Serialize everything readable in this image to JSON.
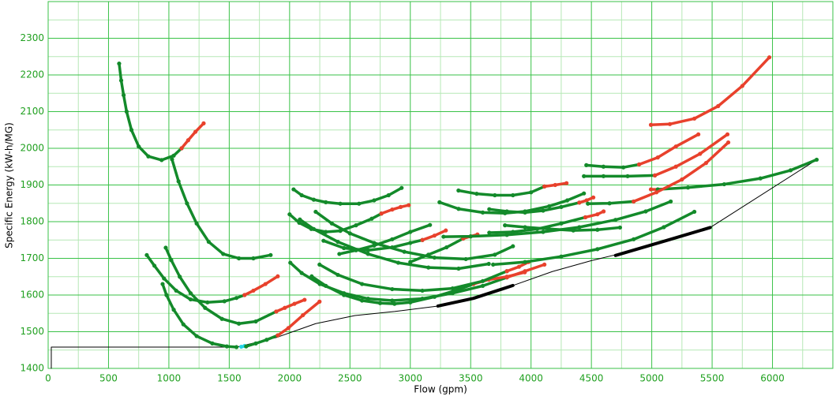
{
  "chart_data": {
    "type": "scatter",
    "x_label": "Flow (gpm)",
    "y_label": "Specific Energy (kW-h/MG)",
    "xlim": [
      0,
      6500
    ],
    "ylim": [
      1400,
      2400
    ],
    "xticks": [
      0,
      500,
      1000,
      1500,
      2000,
      2500,
      3000,
      3500,
      4000,
      4500,
      5000,
      5500,
      6000
    ],
    "yticks": [
      1400,
      1500,
      1600,
      1700,
      1800,
      1900,
      2000,
      2100,
      2200,
      2300
    ],
    "grid": true,
    "minor_grid": true,
    "series": [
      {
        "color": "#000000",
        "style": "line",
        "x": [
          26,
          26,
          1562,
          1889,
          2216,
          2542,
          2869,
          3229,
          3523,
          3850,
          4176,
          4503,
          4830,
          5157,
          5484,
          6366
        ],
        "values": [
          1400,
          1458,
          1458,
          1484,
          1522,
          1544,
          1555,
          1570,
          1591,
          1626,
          1664,
          1694,
          1720,
          1752,
          1784,
          1969
        ]
      },
      {
        "color": "#138a2a",
        "style": "dots",
        "x": [
          588,
          605,
          625,
          650,
          690,
          750,
          830,
          940,
          1040,
          1105
        ],
        "values": [
          2231,
          2185,
          2145,
          2100,
          2050,
          2005,
          1978,
          1968,
          1980,
          2000
        ]
      },
      {
        "color": "#e8412c",
        "style": "dots",
        "x": [
          1105,
          1160,
          1220,
          1288
        ],
        "values": [
          2000,
          2022,
          2045,
          2068
        ]
      },
      {
        "color": "#138a2a",
        "style": "dots",
        "x": [
          1026,
          1080,
          1150,
          1230,
          1330,
          1450,
          1580,
          1700,
          1843
        ],
        "values": [
          1970,
          1910,
          1850,
          1795,
          1745,
          1712,
          1700,
          1700,
          1709
        ]
      },
      {
        "color": "#138a2a",
        "style": "dots",
        "x": [
          817,
          880,
          960,
          1060,
          1180,
          1320,
          1460,
          1560,
          1627
        ],
        "values": [
          1709,
          1680,
          1645,
          1612,
          1588,
          1580,
          1583,
          1592,
          1600
        ]
      },
      {
        "color": "#e8412c",
        "style": "dots",
        "x": [
          1627,
          1700,
          1800,
          1902
        ],
        "values": [
          1600,
          1612,
          1630,
          1651
        ]
      },
      {
        "color": "#138a2a",
        "style": "dots",
        "x": [
          974,
          1020,
          1090,
          1180,
          1300,
          1440,
          1580,
          1720,
          1889
        ],
        "values": [
          1729,
          1695,
          1650,
          1605,
          1565,
          1535,
          1522,
          1528,
          1555
        ]
      },
      {
        "color": "#e8412c",
        "style": "dots",
        "x": [
          1889,
          1960,
          2040,
          2124
        ],
        "values": [
          1555,
          1565,
          1576,
          1587
        ]
      },
      {
        "color": "#138a2a",
        "style": "dots",
        "x": [
          948,
          980,
          1040,
          1120,
          1230,
          1360,
          1480,
          1560
        ],
        "values": [
          1630,
          1600,
          1560,
          1520,
          1488,
          1468,
          1460,
          1458
        ]
      },
      {
        "color": "#22d3e6",
        "style": "dots",
        "x": [
          1600,
          1627
        ],
        "values": [
          1459,
          1461
        ]
      },
      {
        "color": "#138a2a",
        "style": "dots",
        "x": [
          1640,
          1720,
          1810,
          1902
        ],
        "values": [
          1460,
          1468,
          1478,
          1490
        ]
      },
      {
        "color": "#e8412c",
        "style": "dots",
        "x": [
          1902,
          1990,
          2110,
          2248
        ],
        "values": [
          1490,
          1510,
          1545,
          1582
        ]
      },
      {
        "color": "#138a2a",
        "style": "dots",
        "x": [
          2033,
          2100,
          2200,
          2300,
          2420,
          2575,
          2700,
          2820,
          2928
        ],
        "values": [
          1888,
          1872,
          1860,
          1853,
          1849,
          1849,
          1858,
          1872,
          1892
        ]
      },
      {
        "color": "#138a2a",
        "style": "dots",
        "x": [
          2000,
          2080,
          2180,
          2300,
          2420,
          2550,
          2680,
          2760
        ],
        "values": [
          1820,
          1797,
          1780,
          1772,
          1775,
          1790,
          1808,
          1822
        ]
      },
      {
        "color": "#e8412c",
        "style": "dots",
        "x": [
          2760,
          2850,
          2920,
          2987
        ],
        "values": [
          1822,
          1833,
          1840,
          1845
        ]
      },
      {
        "color": "#138a2a",
        "style": "dots",
        "x": [
          2216,
          2350,
          2500,
          2700,
          2950,
          3200,
          3460,
          3700,
          3850
        ],
        "values": [
          1827,
          1795,
          1768,
          1742,
          1718,
          1702,
          1698,
          1710,
          1733
        ]
      },
      {
        "color": "#138a2a",
        "style": "dots",
        "x": [
          2085,
          2200,
          2400,
          2650,
          2900,
          3150,
          3400,
          3650
        ],
        "values": [
          1806,
          1780,
          1745,
          1712,
          1688,
          1675,
          1672,
          1685
        ]
      },
      {
        "color": "#138a2a",
        "style": "dots",
        "x": [
          2281,
          2450,
          2650,
          2850,
          3000,
          3100
        ],
        "values": [
          1748,
          1728,
          1722,
          1730,
          1742,
          1750
        ]
      },
      {
        "color": "#e8412c",
        "style": "dots",
        "x": [
          3100,
          3200,
          3294
        ],
        "values": [
          1750,
          1762,
          1776
        ]
      },
      {
        "color": "#138a2a",
        "style": "dots",
        "x": [
          2412,
          2550,
          2700,
          2850,
          3000,
          3163
        ],
        "values": [
          1712,
          1722,
          1735,
          1752,
          1772,
          1791
        ]
      },
      {
        "color": "#138a2a",
        "style": "dots",
        "x": [
          3000,
          3150,
          3300,
          3438
        ],
        "values": [
          1690,
          1710,
          1730,
          1754
        ]
      },
      {
        "color": "#e8412c",
        "style": "dots",
        "x": [
          3438,
          3500,
          3556
        ],
        "values": [
          1754,
          1760,
          1765
        ]
      },
      {
        "color": "#138a2a",
        "style": "dots",
        "x": [
          2006,
          2100,
          2250,
          2450,
          2650,
          2850,
          3100,
          3350,
          3600,
          3800
        ],
        "values": [
          1688,
          1660,
          1630,
          1605,
          1590,
          1585,
          1590,
          1605,
          1625,
          1648
        ]
      },
      {
        "color": "#e8412c",
        "style": "dots",
        "x": [
          3800,
          3950,
          4111
        ],
        "values": [
          1648,
          1665,
          1683
        ]
      },
      {
        "color": "#138a2a",
        "style": "dots",
        "x": [
          2183,
          2300,
          2450,
          2600,
          2750,
          2869,
          3000,
          3200,
          3400,
          3523
        ],
        "values": [
          1651,
          1625,
          1600,
          1585,
          1578,
          1576,
          1580,
          1595,
          1615,
          1630
        ]
      },
      {
        "color": "#e8412c",
        "style": "dots",
        "x": [
          3523,
          3650,
          3800,
          3948
        ],
        "values": [
          1630,
          1642,
          1650,
          1662
        ]
      },
      {
        "color": "#138a2a",
        "style": "dots",
        "x": [
          2248,
          2400,
          2600,
          2850,
          3100,
          3350,
          3600,
          3800
        ],
        "values": [
          1683,
          1655,
          1630,
          1616,
          1612,
          1618,
          1638,
          1665
        ]
      },
      {
        "color": "#e8412c",
        "style": "dots",
        "x": [
          3800,
          3900,
          3980
        ],
        "values": [
          1665,
          1677,
          1690
        ]
      },
      {
        "color": "#138a2a",
        "style": "dots",
        "x": [
          3686,
          3950,
          4250,
          4550,
          4850,
          5100,
          5353
        ],
        "values": [
          1683,
          1690,
          1705,
          1725,
          1752,
          1785,
          1827
        ]
      },
      {
        "color": "#138a2a",
        "style": "dots",
        "x": [
          3275,
          3500,
          3800,
          4100,
          4400,
          4700,
          4950,
          5157
        ],
        "values": [
          1759,
          1760,
          1764,
          1772,
          1785,
          1805,
          1828,
          1855
        ]
      },
      {
        "color": "#138a2a",
        "style": "dots",
        "x": [
          3399,
          3550,
          3700,
          3850,
          4000,
          4111
        ],
        "values": [
          1885,
          1876,
          1872,
          1872,
          1880,
          1896
        ]
      },
      {
        "color": "#e8412c",
        "style": "dots",
        "x": [
          4111,
          4200,
          4294
        ],
        "values": [
          1896,
          1900,
          1905
        ]
      },
      {
        "color": "#138a2a",
        "style": "dots",
        "x": [
          3242,
          3400,
          3600,
          3784,
          3950,
          4150,
          4300,
          4438
        ],
        "values": [
          1853,
          1835,
          1825,
          1823,
          1828,
          1842,
          1858,
          1877
        ]
      },
      {
        "color": "#138a2a",
        "style": "dots",
        "x": [
          3654,
          3800,
          3950,
          4100,
          4250,
          4400
        ],
        "values": [
          1834,
          1828,
          1825,
          1830,
          1840,
          1852
        ]
      },
      {
        "color": "#e8412c",
        "style": "dots",
        "x": [
          4400,
          4460,
          4516
        ],
        "values": [
          1852,
          1858,
          1866
        ]
      },
      {
        "color": "#138a2a",
        "style": "dots",
        "x": [
          3654,
          3850,
          4050,
          4250,
          4450
        ],
        "values": [
          1770,
          1772,
          1780,
          1795,
          1812
        ]
      },
      {
        "color": "#e8412c",
        "style": "dots",
        "x": [
          4450,
          4550,
          4601
        ],
        "values": [
          1812,
          1820,
          1828
        ]
      },
      {
        "color": "#138a2a",
        "style": "dots",
        "x": [
          3784,
          3950,
          4150,
          4350,
          4550,
          4737
        ],
        "values": [
          1790,
          1785,
          1780,
          1776,
          1778,
          1784
        ]
      },
      {
        "color": "#138a2a",
        "style": "dots",
        "x": [
          4458,
          4600,
          4765,
          4895
        ],
        "values": [
          1954,
          1950,
          1948,
          1956
        ]
      },
      {
        "color": "#e8412c",
        "style": "dots",
        "x": [
          4895,
          5050,
          5200,
          5386
        ],
        "values": [
          1956,
          1975,
          2005,
          2038
        ]
      },
      {
        "color": "#138a2a",
        "style": "dots",
        "x": [
          4438,
          4600,
          4800,
          5026
        ],
        "values": [
          1924,
          1924,
          1924,
          1926
        ]
      },
      {
        "color": "#e8412c",
        "style": "dots",
        "x": [
          5026,
          5200,
          5400,
          5627
        ],
        "values": [
          1926,
          1950,
          1985,
          2038
        ]
      },
      {
        "color": "#e8412c",
        "style": "dots",
        "x": [
          4993,
          5150,
          5353,
          5550,
          5750,
          5974
        ],
        "values": [
          2064,
          2066,
          2081,
          2115,
          2170,
          2248
        ]
      },
      {
        "color": "#e8412c",
        "style": "dots",
        "x": [
          4993,
          5050
        ],
        "values": [
          1888,
          1888
        ]
      },
      {
        "color": "#138a2a",
        "style": "dots",
        "x": [
          5050,
          5300,
          5600,
          5900,
          6150,
          6366
        ],
        "values": [
          1888,
          1893,
          1902,
          1918,
          1940,
          1969
        ]
      },
      {
        "color": "#138a2a",
        "style": "dots",
        "x": [
          4471,
          4650,
          4850
        ],
        "values": [
          1849,
          1850,
          1855
        ]
      },
      {
        "color": "#e8412c",
        "style": "dots",
        "x": [
          4850,
          5039,
          5250,
          5450,
          5634
        ],
        "values": [
          1855,
          1880,
          1915,
          1960,
          2016
        ]
      },
      {
        "color": "#000000",
        "style": "thick",
        "x": [
          3229,
          3523,
          3850
        ],
        "values": [
          1570,
          1591,
          1626
        ]
      },
      {
        "color": "#000000",
        "style": "thick",
        "x": [
          4700,
          5157,
          5484
        ],
        "values": [
          1708,
          1752,
          1784
        ]
      }
    ]
  }
}
